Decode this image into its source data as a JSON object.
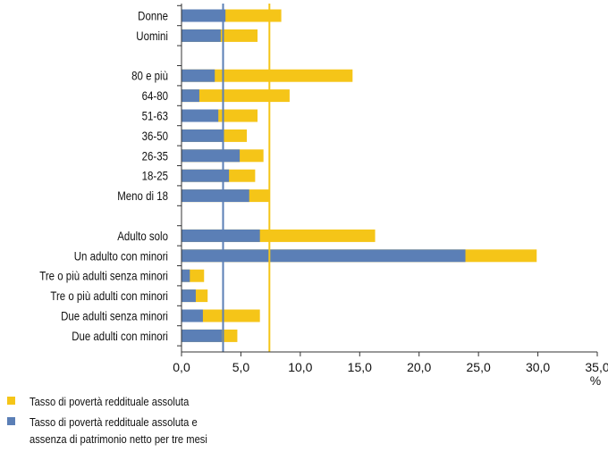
{
  "chart_data": {
    "type": "bar",
    "orientation": "horizontal",
    "xlabel": "%",
    "xlim": [
      0,
      35
    ],
    "xticks": [
      "0,0",
      "5,0",
      "10,0",
      "15,0",
      "20,0",
      "25,0",
      "30,0",
      "35,0"
    ],
    "categories": [
      "Donne",
      "Uomini",
      "",
      "80 e più",
      "64-80",
      "51-63",
      "36-50",
      "26-35",
      "18-25",
      "Meno di 18",
      "",
      "Adulto solo",
      "Un adulto con minori",
      "Tre o più adulti senza minori",
      "Tre o più adulti con minori",
      "Due adulti senza minori",
      "Due adulti con minori"
    ],
    "series": [
      {
        "name": "Tasso di povertà reddituale assoluta",
        "color": "#f5c518",
        "values": [
          8.4,
          6.4,
          null,
          14.4,
          9.1,
          6.4,
          5.5,
          6.9,
          6.2,
          7.4,
          null,
          16.3,
          29.9,
          1.9,
          2.2,
          6.6,
          4.7
        ]
      },
      {
        "name": "Tasso di povertà reddituale assoluta e assenza di patrimonio netto per tre mesi",
        "color": "#5b7fb6",
        "values": [
          3.7,
          3.3,
          null,
          2.8,
          1.5,
          3.1,
          3.5,
          4.9,
          4.0,
          5.7,
          null,
          6.6,
          23.9,
          0.7,
          1.2,
          1.8,
          3.4
        ]
      }
    ],
    "reference_lines": [
      {
        "series": "Tasso di povertà reddituale assoluta e assenza di patrimonio netto per tre mesi",
        "value": 3.5,
        "color": "#5b7fb6"
      },
      {
        "series": "Tasso di povertà reddituale assoluta",
        "value": 7.4,
        "color": "#f5c518"
      }
    ],
    "legend_position": "bottom-left",
    "grid": false
  },
  "legend": {
    "items": [
      {
        "color": "#f5c518",
        "lines": [
          "Tasso di povertà reddituale assoluta"
        ]
      },
      {
        "color": "#5b7fb6",
        "lines": [
          "Tasso di povertà reddituale assoluta e",
          "assenza di patrimonio netto per tre mesi"
        ]
      }
    ]
  }
}
